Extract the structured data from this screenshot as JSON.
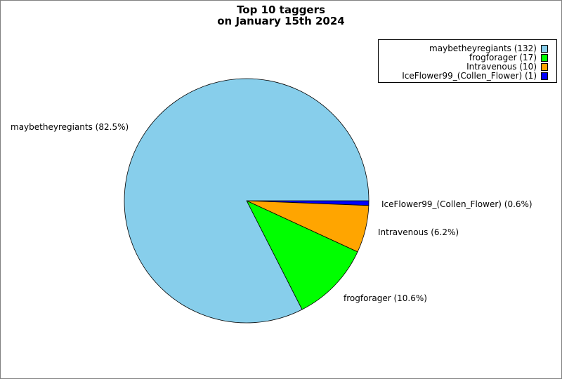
{
  "chart_data": {
    "type": "pie",
    "title_line1": "Top 10 taggers",
    "title_line2": "on January 15th 2024",
    "legend_position": "top-right",
    "slices": [
      {
        "name": "maybetheyregiants",
        "value": 132,
        "percent_label": "maybetheyregiants (82.5%)",
        "legend_label": "maybetheyregiants (132)",
        "color": "#87CEEB"
      },
      {
        "name": "frogforager",
        "value": 17,
        "percent_label": "frogforager (10.6%)",
        "legend_label": "frogforager (17)",
        "color": "#00FF00"
      },
      {
        "name": "Intravenous",
        "value": 10,
        "percent_label": "Intravenous (6.2%)",
        "legend_label": "Intravenous (10)",
        "color": "#FFA500"
      },
      {
        "name": "IceFlower99_(Collen_Flower)",
        "value": 1,
        "percent_label": "IceFlower99_(Collen_Flower) (0.6%)",
        "legend_label": "IceFlower99_(Collen_Flower) (1)",
        "color": "#0000FF"
      }
    ]
  }
}
